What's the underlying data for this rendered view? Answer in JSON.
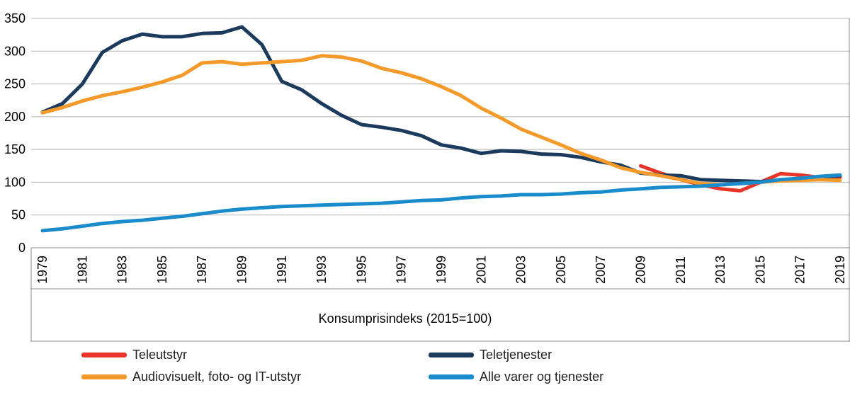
{
  "chart_data": {
    "type": "line",
    "title": "",
    "xlabel": "Konsumprisindeks (2015=100)",
    "ylabel": "",
    "ylim": [
      0,
      350
    ],
    "yticks": [
      0,
      50,
      100,
      150,
      200,
      250,
      300,
      350
    ],
    "xlim": [
      1979,
      2019
    ],
    "xticks": [
      "1979",
      "1981",
      "1983",
      "1985",
      "1987",
      "1989",
      "1991",
      "1993",
      "1995",
      "1997",
      "1999",
      "2001",
      "2003",
      "2005",
      "2007",
      "2009",
      "2011",
      "2013",
      "2015",
      "2017",
      "2019"
    ],
    "grid": "horizontal",
    "legend_position": "bottom",
    "series": [
      {
        "name": "Teleutstyr",
        "color": "#e8352a",
        "x": [
          2009,
          2010,
          2011,
          2012,
          2013,
          2014,
          2015,
          2016,
          2017,
          2018,
          2019
        ],
        "values": [
          125,
          114,
          104,
          96,
          90,
          87,
          100,
          113,
          111,
          107,
          108
        ]
      },
      {
        "name": "Teletjenester",
        "color": "#1b3a5c",
        "x": [
          1979,
          1980,
          1981,
          1982,
          1983,
          1984,
          1985,
          1986,
          1987,
          1988,
          1989,
          1990,
          1991,
          1992,
          1993,
          1994,
          1995,
          1996,
          1997,
          1998,
          1999,
          2000,
          2001,
          2002,
          2003,
          2004,
          2005,
          2006,
          2007,
          2008,
          2009,
          2010,
          2011,
          2012,
          2013,
          2014,
          2015,
          2016,
          2017,
          2018,
          2019
        ],
        "values": [
          207,
          220,
          250,
          298,
          316,
          326,
          322,
          322,
          327,
          328,
          337,
          310,
          254,
          241,
          220,
          202,
          188,
          184,
          179,
          171,
          157,
          152,
          144,
          148,
          147,
          143,
          142,
          138,
          131,
          126,
          114,
          111,
          110,
          104,
          103,
          102,
          101,
          103,
          104,
          108,
          110
        ]
      },
      {
        "name": "Audiovisuelt, foto- og IT-utstyr",
        "color": "#f39a2b",
        "x": [
          1979,
          1980,
          1981,
          1982,
          1983,
          1984,
          1985,
          1986,
          1987,
          1988,
          1989,
          1990,
          1991,
          1992,
          1993,
          1994,
          1995,
          1996,
          1997,
          1998,
          1999,
          2000,
          2001,
          2002,
          2003,
          2004,
          2005,
          2006,
          2007,
          2008,
          2009,
          2010,
          2011,
          2012,
          2013,
          2014,
          2015,
          2016,
          2017,
          2018,
          2019
        ],
        "values": [
          206,
          214,
          224,
          232,
          238,
          245,
          253,
          263,
          282,
          284,
          280,
          282,
          284,
          286,
          293,
          291,
          285,
          274,
          267,
          258,
          246,
          232,
          213,
          198,
          181,
          169,
          157,
          144,
          134,
          122,
          115,
          110,
          104,
          98,
          96,
          98,
          100,
          102,
          103,
          104,
          103
        ]
      },
      {
        "name": "Alle varer og tjenester",
        "color": "#1a8ccb",
        "x": [
          1979,
          1980,
          1981,
          1982,
          1983,
          1984,
          1985,
          1986,
          1987,
          1988,
          1989,
          1990,
          1991,
          1992,
          1993,
          1994,
          1995,
          1996,
          1997,
          1998,
          1999,
          2000,
          2001,
          2002,
          2003,
          2004,
          2005,
          2006,
          2007,
          2008,
          2009,
          2010,
          2011,
          2012,
          2013,
          2014,
          2015,
          2016,
          2017,
          2018,
          2019
        ],
        "values": [
          26,
          29,
          33,
          37,
          40,
          42,
          45,
          48,
          52,
          56,
          59,
          61,
          63,
          64,
          65,
          66,
          67,
          68,
          70,
          72,
          73,
          76,
          78,
          79,
          81,
          81,
          82,
          84,
          85,
          88,
          90,
          92,
          93,
          94,
          96,
          98,
          100,
          104,
          106,
          109,
          111
        ]
      }
    ]
  }
}
